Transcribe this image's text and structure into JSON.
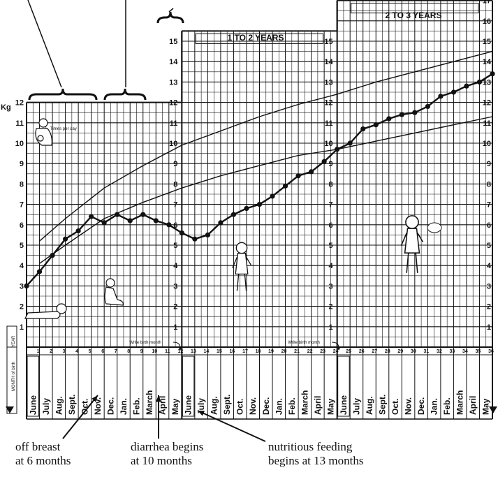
{
  "chart_data": {
    "type": "line",
    "ylabel": "Kg",
    "ylim": [
      0,
      17
    ],
    "xlim": [
      0,
      36
    ],
    "age_groups": [
      "1 TO 2 YEARS",
      "2 TO 3 YEARS"
    ],
    "row_label_year": "YEAR",
    "row_label_month": "MONTH of birth",
    "write_birth_month": "Write birth month",
    "feeding_note": "Times per day",
    "x_ticks": [
      "1",
      "2",
      "3",
      "4",
      "5",
      "6",
      "7",
      "8",
      "9",
      "10",
      "11",
      "12",
      "13",
      "14",
      "15",
      "16",
      "17",
      "18",
      "19",
      "20",
      "21",
      "22",
      "23",
      "24",
      "25",
      "26",
      "27",
      "28",
      "29",
      "30",
      "31",
      "32",
      "33",
      "34",
      "35",
      "36"
    ],
    "month_labels": [
      "June",
      "July",
      "Aug.",
      "Sept.",
      "Oct.",
      "Nov.",
      "Dec.",
      "Jan.",
      "Feb.",
      "March",
      "April",
      "May",
      "June",
      "July",
      "Aug.",
      "Sept.",
      "Oct.",
      "Nov.",
      "Dec.",
      "Jan.",
      "Feb.",
      "March",
      "April",
      "May",
      "June",
      "July",
      "Aug.",
      "Sept.",
      "Oct.",
      "Nov.",
      "Dec.",
      "Jan.",
      "Feb.",
      "March",
      "April",
      "May"
    ],
    "series": [
      {
        "x": [
          0,
          1,
          2,
          3,
          4,
          5,
          6,
          7,
          8,
          9,
          10,
          11,
          12,
          13,
          14,
          15,
          16,
          17,
          18,
          19,
          20,
          21,
          22,
          23,
          24,
          25,
          26,
          27,
          28,
          29,
          30,
          31,
          32,
          33,
          34,
          35,
          36
        ],
        "values": [
          3.0,
          3.7,
          4.5,
          5.3,
          5.7,
          6.4,
          6.1,
          6.5,
          6.2,
          6.5,
          6.2,
          6.0,
          5.6,
          5.3,
          5.5,
          6.1,
          6.5,
          6.8,
          7.0,
          7.4,
          7.9,
          8.4,
          8.6,
          9.1,
          9.7,
          10.0,
          10.7,
          10.9,
          11.2,
          11.4,
          11.5,
          11.8,
          12.3,
          12.5,
          12.8,
          13.0,
          13.4
        ]
      }
    ],
    "reference_curves": [
      {
        "x": [
          1,
          3,
          6,
          9,
          12,
          15,
          18,
          21,
          24,
          27,
          30,
          33,
          36
        ],
        "values": [
          5.2,
          6.3,
          7.8,
          8.9,
          9.9,
          10.6,
          11.3,
          11.9,
          12.4,
          13.0,
          13.5,
          14.0,
          14.5
        ]
      },
      {
        "x": [
          1,
          3,
          6,
          9,
          12,
          15,
          18,
          21,
          24,
          27,
          30,
          33,
          36
        ],
        "values": [
          4.1,
          5.0,
          6.3,
          7.1,
          7.8,
          8.4,
          8.9,
          9.4,
          9.7,
          10.1,
          10.5,
          10.9,
          11.3
        ]
      }
    ]
  },
  "annotations": {
    "off_breast": [
      "off breast",
      "at 6 months"
    ],
    "diarrhea": [
      "diarrhea begins",
      "at 10 months"
    ],
    "nutritious": [
      "nutritious feeding",
      "begins at 13 months"
    ]
  }
}
